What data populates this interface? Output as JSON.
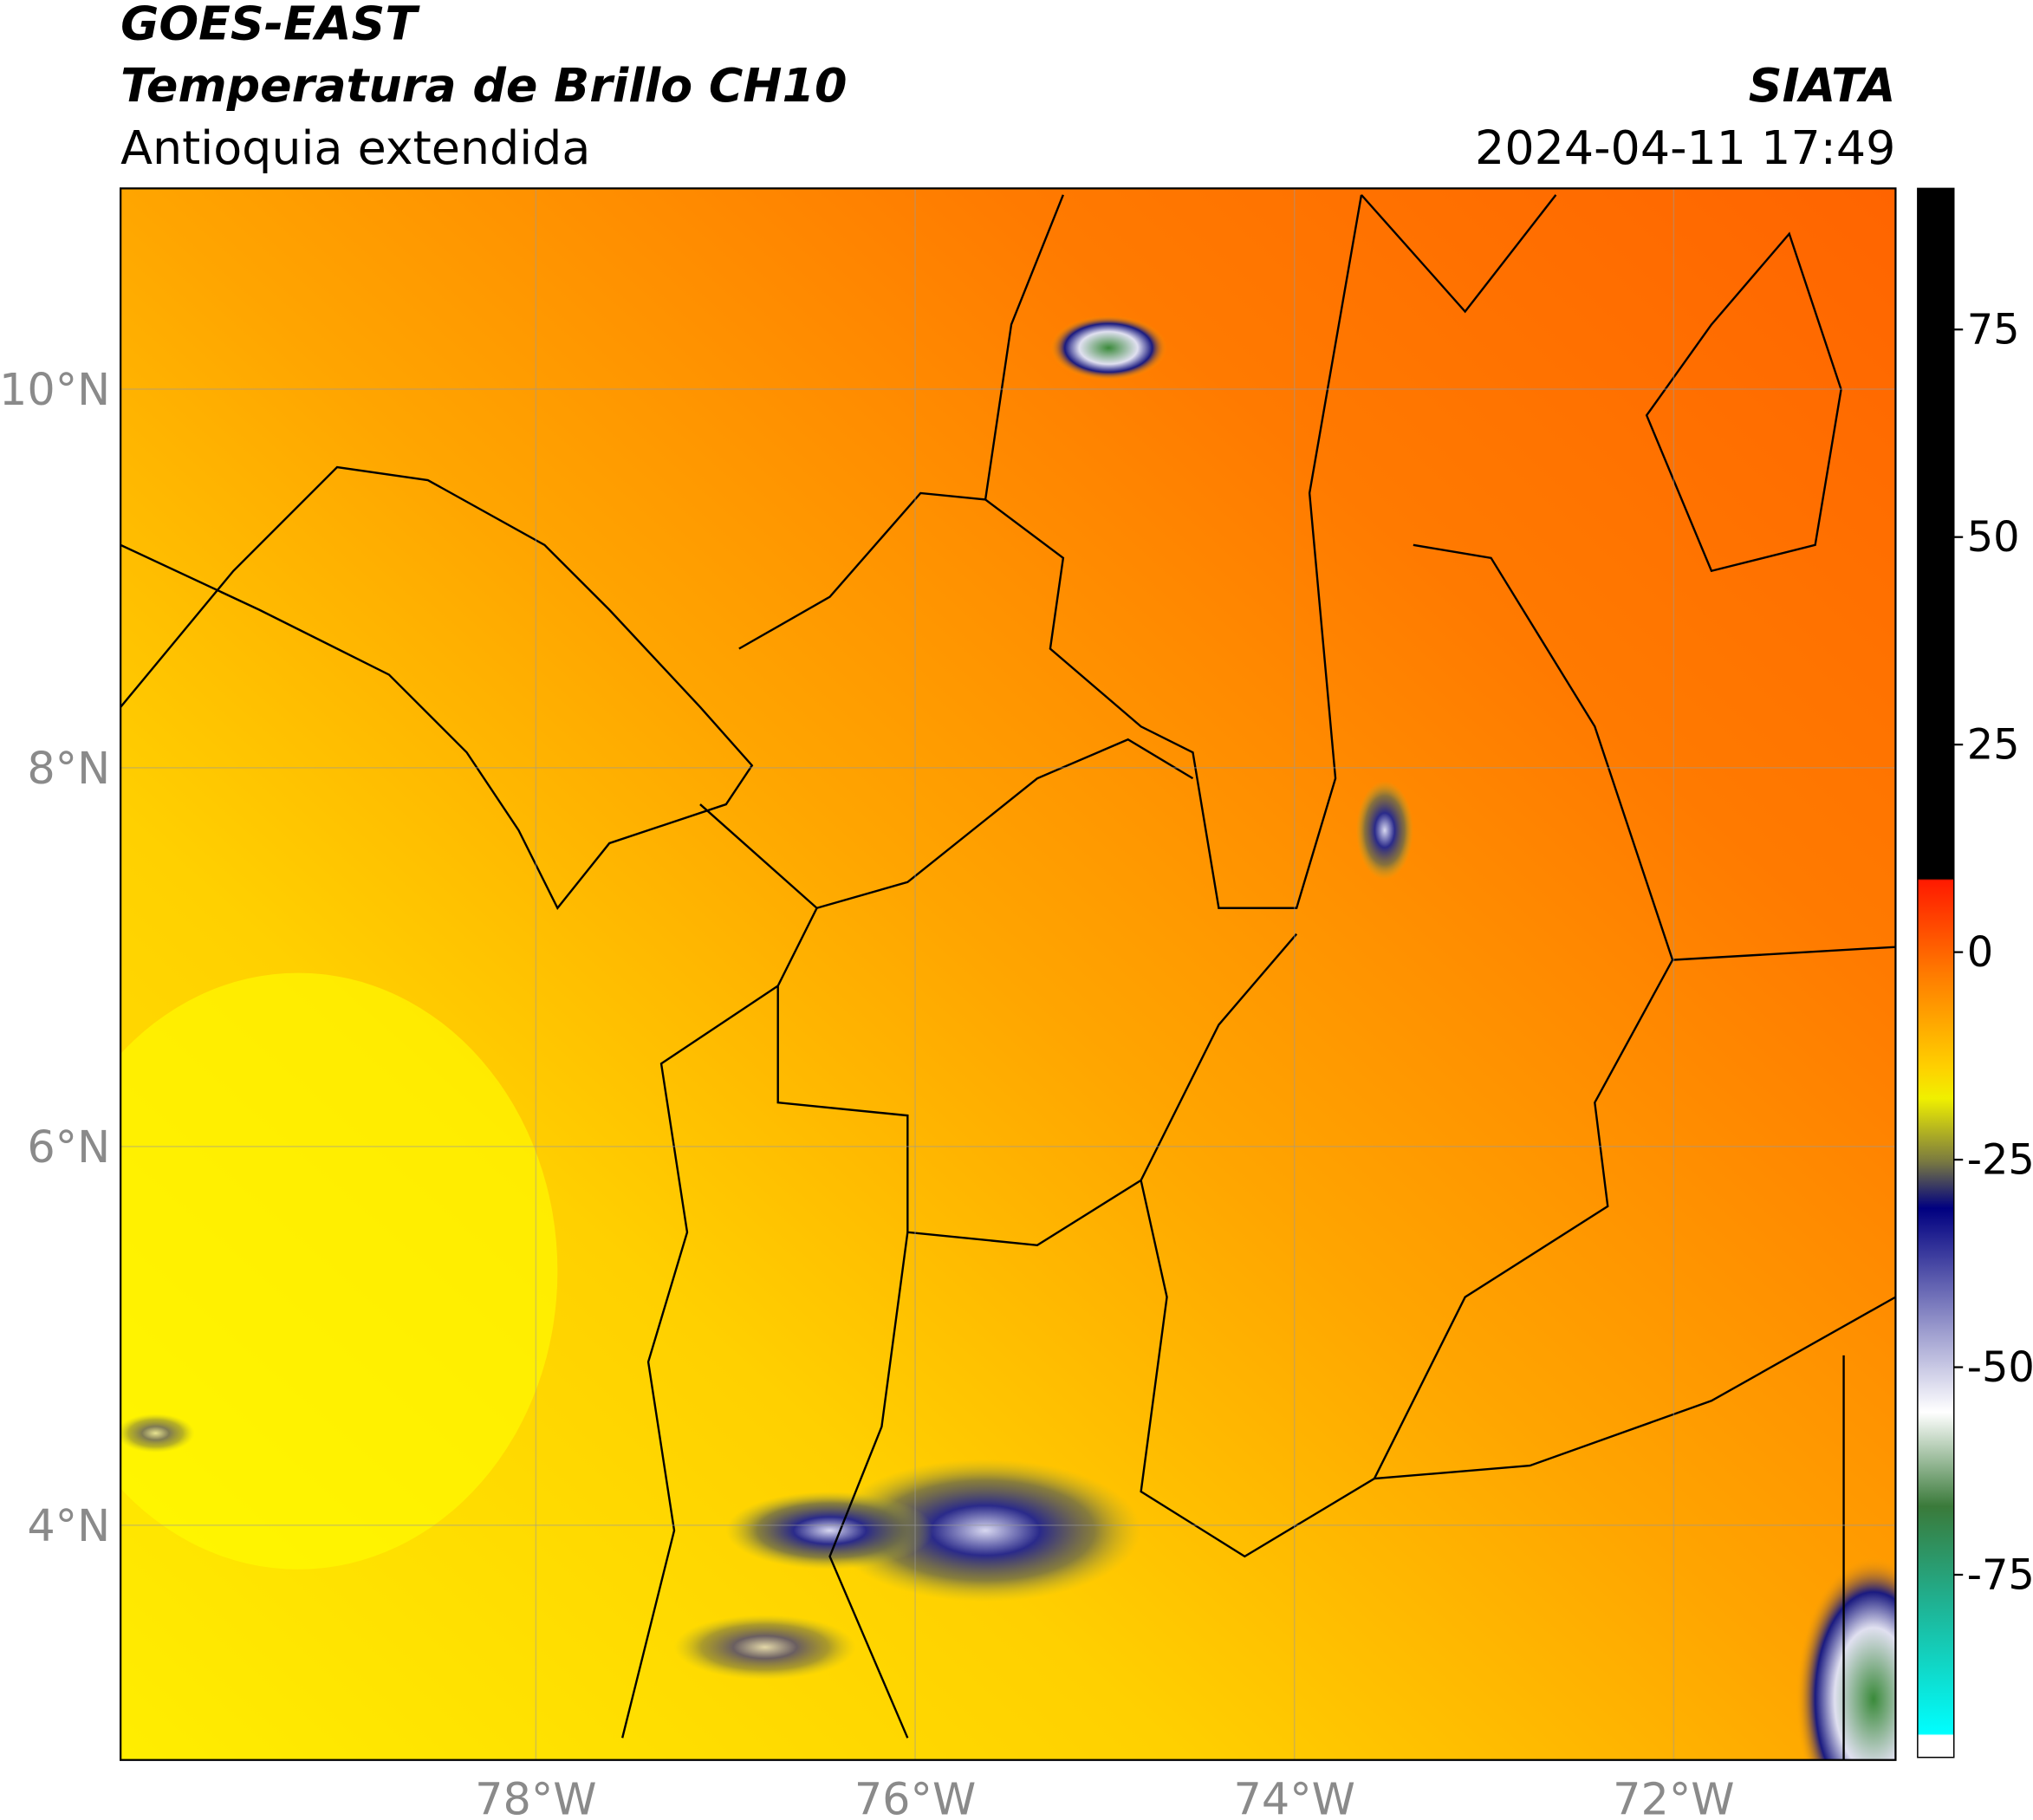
{
  "header": {
    "title": "GOES-EAST",
    "subtitle": "Temperatura de Brillo CH10",
    "region": "Antioquia extendida",
    "source": "SIATA",
    "timestamp": "2024-04-11 17:49"
  },
  "map": {
    "xlim": [
      -80.19,
      -70.83
    ],
    "ylim": [
      2.76,
      11.06
    ],
    "xticks": [
      {
        "value": -78,
        "label": "78°W"
      },
      {
        "value": -76,
        "label": "76°W"
      },
      {
        "value": -74,
        "label": "74°W"
      },
      {
        "value": -72,
        "label": "72°W"
      }
    ],
    "yticks": [
      {
        "value": 10,
        "label": "10°N"
      },
      {
        "value": 8,
        "label": "8°N"
      },
      {
        "value": 6,
        "label": "6°N"
      },
      {
        "value": 4,
        "label": "4°N"
      }
    ]
  },
  "colorbar": {
    "clim": [
      -97,
      92
    ],
    "ticks": [
      75,
      50,
      25,
      0,
      -25,
      -50,
      -75
    ]
  }
}
